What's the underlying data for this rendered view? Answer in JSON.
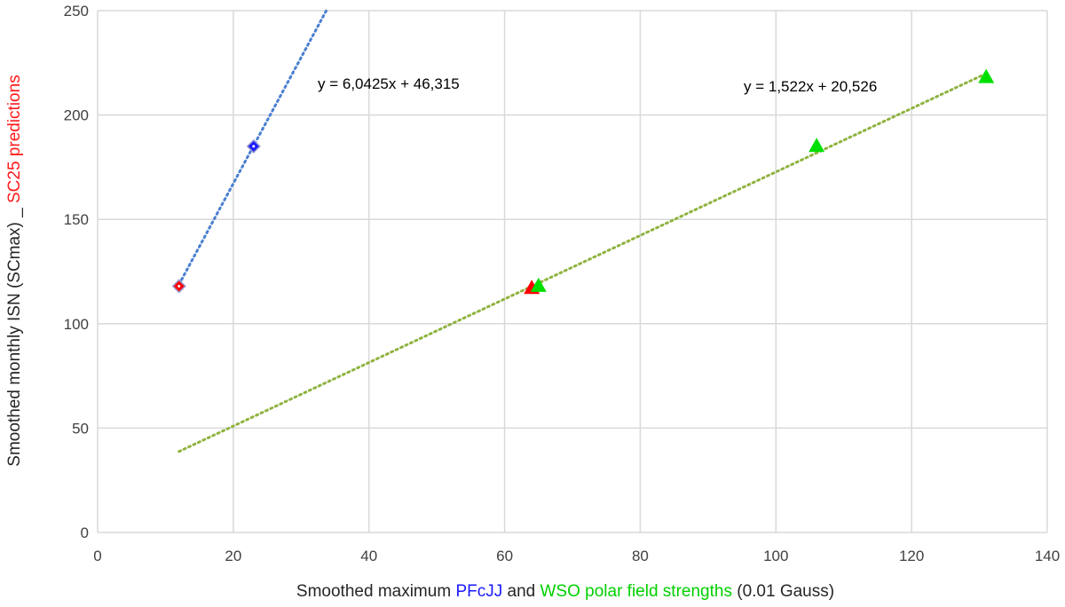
{
  "chart_data": {
    "type": "scatter",
    "xlim": [
      0,
      140
    ],
    "ylim": [
      0,
      250
    ],
    "x_ticks": [
      0,
      20,
      40,
      60,
      80,
      100,
      120,
      140
    ],
    "y_ticks": [
      0,
      50,
      100,
      150,
      200,
      250
    ],
    "grid": true,
    "xlabel": {
      "parts": [
        {
          "text": "Smoothed maximum ",
          "color": "#262626"
        },
        {
          "text": "PFcJJ",
          "color": "#1a1aff"
        },
        {
          "text": " and ",
          "color": "#262626"
        },
        {
          "text": "WSO polar field strengths",
          "color": "#00d000"
        },
        {
          "text": " (0.01 Gauss)",
          "color": "#262626"
        }
      ]
    },
    "ylabel": {
      "parts": [
        {
          "text": "Smoothed monthly ISN (SCmax) _ ",
          "color": "#262626"
        },
        {
          "text": "SC25 predictions",
          "color": "#ff1a1a"
        }
      ]
    },
    "series": [
      {
        "marker": "diamond",
        "points": [
          {
            "x": 12,
            "y": 118,
            "color": "#ff0000"
          },
          {
            "x": 23,
            "y": 185,
            "color": "#1a1aff"
          }
        ],
        "trendline": {
          "slope": 6.0425,
          "intercept": 46.315,
          "x_range": [
            12,
            34
          ],
          "color": "#4a7fd0",
          "equation": "y = 6,0425x + 46,315"
        }
      },
      {
        "marker": "triangle",
        "points": [
          {
            "x": 64,
            "y": 117,
            "color": "#ff0000"
          },
          {
            "x": 65,
            "y": 118,
            "color": "#00e000"
          },
          {
            "x": 106,
            "y": 185,
            "color": "#00e000"
          },
          {
            "x": 131,
            "y": 218,
            "color": "#00e000"
          }
        ],
        "trendline": {
          "slope": 1.522,
          "intercept": 20.526,
          "x_range": [
            12,
            131
          ],
          "color": "#8fb33f",
          "equation": "y = 1,522x + 20,526"
        }
      }
    ]
  }
}
